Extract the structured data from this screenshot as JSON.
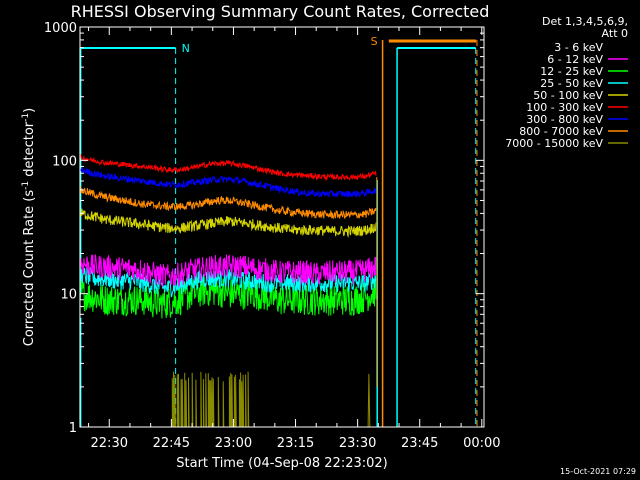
{
  "chart_data": {
    "type": "line",
    "title": "RHESSI Observing Summary Count Rates, Corrected",
    "xlabel": "Start Time (04-Sep-08 22:23:02)",
    "ylabel_base": "Corrected Count Rate (s",
    "ylabel_sup": "-1",
    "ylabel_end": " detector",
    "ylabel_sup2": "-1",
    "ylabel_close": ")",
    "yscale": "log",
    "ylim": [
      1,
      1000
    ],
    "xlim": [
      -0.1,
      97.5
    ],
    "xticks": [
      {
        "m": 6.97,
        "label": "22:30"
      },
      {
        "m": 21.97,
        "label": "22:45"
      },
      {
        "m": 36.97,
        "label": "23:00"
      },
      {
        "m": 51.97,
        "label": "23:15"
      },
      {
        "m": 66.97,
        "label": "23:30"
      },
      {
        "m": 81.97,
        "label": "23:45"
      },
      {
        "m": 96.97,
        "label": "00:00"
      }
    ],
    "yticks": [
      {
        "v": 1,
        "label": "1"
      },
      {
        "v": 10,
        "label": "10"
      },
      {
        "v": 100,
        "label": "100"
      },
      {
        "v": 1000,
        "label": "1000"
      }
    ],
    "legend_header": [
      "Det 1,3,4,5,6,9,",
      "Att 0"
    ],
    "series": [
      {
        "name": "3 - 6 keV",
        "color": "#000000",
        "x": [
          0,
          3,
          6,
          9,
          12,
          15,
          18,
          21,
          24,
          27,
          30,
          33,
          36,
          39,
          42,
          45,
          48,
          51,
          54,
          57,
          60,
          63,
          66,
          69,
          71.5
        ],
        "y": [
          9,
          9.5,
          9.5,
          10,
          9.5,
          9.5,
          9,
          8.5,
          9.5,
          10,
          10,
          9.5,
          10,
          9.5,
          9,
          8,
          8,
          8,
          8,
          8,
          8,
          7.5,
          7.5,
          7.5,
          7.5
        ],
        "spread": 0.22
      },
      {
        "name": "6 - 12 keV",
        "color": "#ff00ff",
        "x": [
          0,
          3,
          6,
          9,
          12,
          15,
          18,
          21,
          24,
          27,
          30,
          33,
          36,
          39,
          42,
          45,
          48,
          51,
          54,
          57,
          60,
          63,
          66,
          69,
          71.5
        ],
        "y": [
          17,
          16,
          16,
          15.5,
          15.5,
          15,
          14,
          13.5,
          14,
          15,
          15.5,
          16,
          16,
          16,
          15.5,
          15,
          14.5,
          14.5,
          14.5,
          14,
          14.5,
          14.5,
          14.5,
          15,
          16
        ],
        "spread": 0.09
      },
      {
        "name": "12 - 25 keV",
        "color": "#00ff00",
        "x": [
          0,
          3,
          6,
          9,
          12,
          15,
          18,
          21,
          24,
          27,
          30,
          33,
          36,
          39,
          42,
          45,
          48,
          51,
          54,
          57,
          60,
          63,
          66,
          69,
          71.5
        ],
        "y": [
          10,
          9.5,
          9,
          9,
          9,
          9,
          8.5,
          8.5,
          9,
          10,
          10.5,
          10.5,
          10,
          10,
          10,
          9.5,
          9,
          9,
          9,
          9,
          9,
          9,
          9,
          9.5,
          10.5
        ],
        "spread": 0.12
      },
      {
        "name": "25 - 50 keV",
        "color": "#00ffff",
        "x": [
          0,
          3,
          6,
          9,
          12,
          15,
          18,
          21,
          24,
          27,
          30,
          33,
          36,
          39,
          42,
          45,
          48,
          51,
          54,
          57,
          60,
          63,
          66,
          69,
          71.5
        ],
        "y": [
          14,
          13,
          13,
          12.5,
          12.5,
          12,
          11.5,
          11,
          11.5,
          12.5,
          13,
          13,
          13,
          12.5,
          12.5,
          12,
          12,
          12,
          12,
          12,
          12,
          12,
          12,
          12,
          13
        ],
        "spread": 0.07
      },
      {
        "name": "50 - 100 keV",
        "color": "#d4d400",
        "x": [
          0,
          3,
          6,
          9,
          12,
          15,
          18,
          21,
          24,
          27,
          30,
          33,
          36,
          39,
          42,
          45,
          48,
          51,
          54,
          57,
          60,
          63,
          66,
          69,
          71.5
        ],
        "y": [
          40,
          38,
          36,
          35,
          34,
          33,
          32,
          31,
          31,
          32,
          33,
          34,
          35,
          34,
          33,
          32,
          31,
          30,
          30,
          30,
          29.5,
          29.5,
          29.5,
          30,
          32
        ],
        "spread": 0.04
      },
      {
        "name": "100 - 300 keV",
        "color": "#ff0000",
        "x": [
          0,
          3,
          6,
          9,
          12,
          15,
          18,
          21,
          24,
          27,
          30,
          33,
          36,
          39,
          42,
          45,
          48,
          51,
          54,
          57,
          60,
          63,
          66,
          69,
          71.5
        ],
        "y": [
          105,
          100,
          96,
          94,
          92,
          90,
          88,
          85,
          85,
          88,
          92,
          95,
          95,
          92,
          88,
          84,
          80,
          78,
          77,
          76,
          75,
          75,
          75,
          76,
          80
        ],
        "spread": 0.02
      },
      {
        "name": "300 - 800 keV",
        "color": "#0000ff",
        "x": [
          0,
          3,
          6,
          9,
          12,
          15,
          18,
          21,
          24,
          27,
          30,
          33,
          36,
          39,
          42,
          45,
          48,
          51,
          54,
          57,
          60,
          63,
          66,
          69,
          71.5
        ],
        "y": [
          85,
          80,
          76,
          74,
          72,
          70,
          68,
          66,
          66,
          68,
          70,
          72,
          72,
          70,
          67,
          64,
          61,
          59,
          57,
          56,
          56,
          56,
          56,
          57,
          60
        ],
        "spread": 0.025
      },
      {
        "name": "800 - 7000 keV",
        "color": "#ff8c00",
        "x": [
          0,
          3,
          6,
          9,
          12,
          15,
          18,
          21,
          24,
          27,
          30,
          33,
          36,
          39,
          42,
          45,
          48,
          51,
          54,
          57,
          60,
          63,
          66,
          69,
          71.5
        ],
        "y": [
          60,
          56,
          53,
          51,
          49,
          47,
          46,
          45,
          45,
          46,
          48,
          50,
          50,
          48,
          46,
          44,
          42,
          41,
          40,
          39.5,
          39,
          39,
          39,
          39.5,
          42
        ],
        "spread": 0.03
      },
      {
        "name": "7000 - 15000 keV",
        "color": "#8b8b00",
        "x": [
          0,
          23,
          24,
          41,
          42,
          70.5,
          71,
          71.5
        ],
        "y": [
          1,
          1,
          2.5,
          2.5,
          1,
          1,
          2.5,
          1
        ],
        "spread": 0
      }
    ],
    "annotations": [
      {
        "text": "N",
        "color": "#00ffff"
      },
      {
        "text": "S",
        "color": "#ff8c00"
      }
    ],
    "footer_timestamp": "15-Oct-2021 07:29"
  }
}
